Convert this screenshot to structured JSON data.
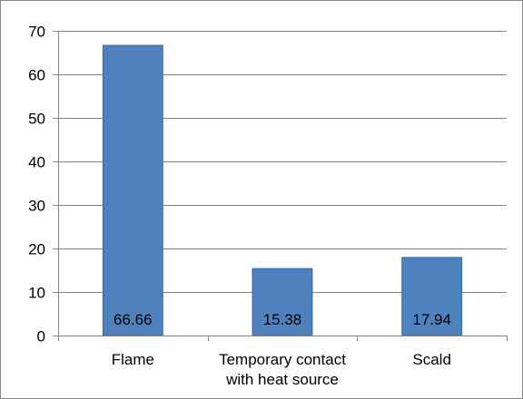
{
  "chart_data": {
    "type": "bar",
    "title": "",
    "xlabel": "",
    "ylabel": "",
    "categories": [
      [
        "Flame"
      ],
      [
        "Temporary contact",
        "with heat source"
      ],
      [
        "Scald"
      ]
    ],
    "values": [
      66.66,
      15.38,
      17.94
    ],
    "data_labels": [
      "66.66",
      "15.38",
      "17.94"
    ],
    "ylim": [
      0,
      70
    ],
    "yticks": [
      0,
      10,
      20,
      30,
      40,
      50,
      60,
      70
    ],
    "ytick_labels": [
      "0",
      "10",
      "20",
      "30",
      "40",
      "50",
      "60",
      "70"
    ],
    "grid": true,
    "legend": "none",
    "data_label_position": "inside-base",
    "colors": {
      "bar": "#4f81bd",
      "bar_border": "#3a67a1",
      "grid": "#868686",
      "axis": "#868686",
      "frame": "#868686"
    }
  }
}
